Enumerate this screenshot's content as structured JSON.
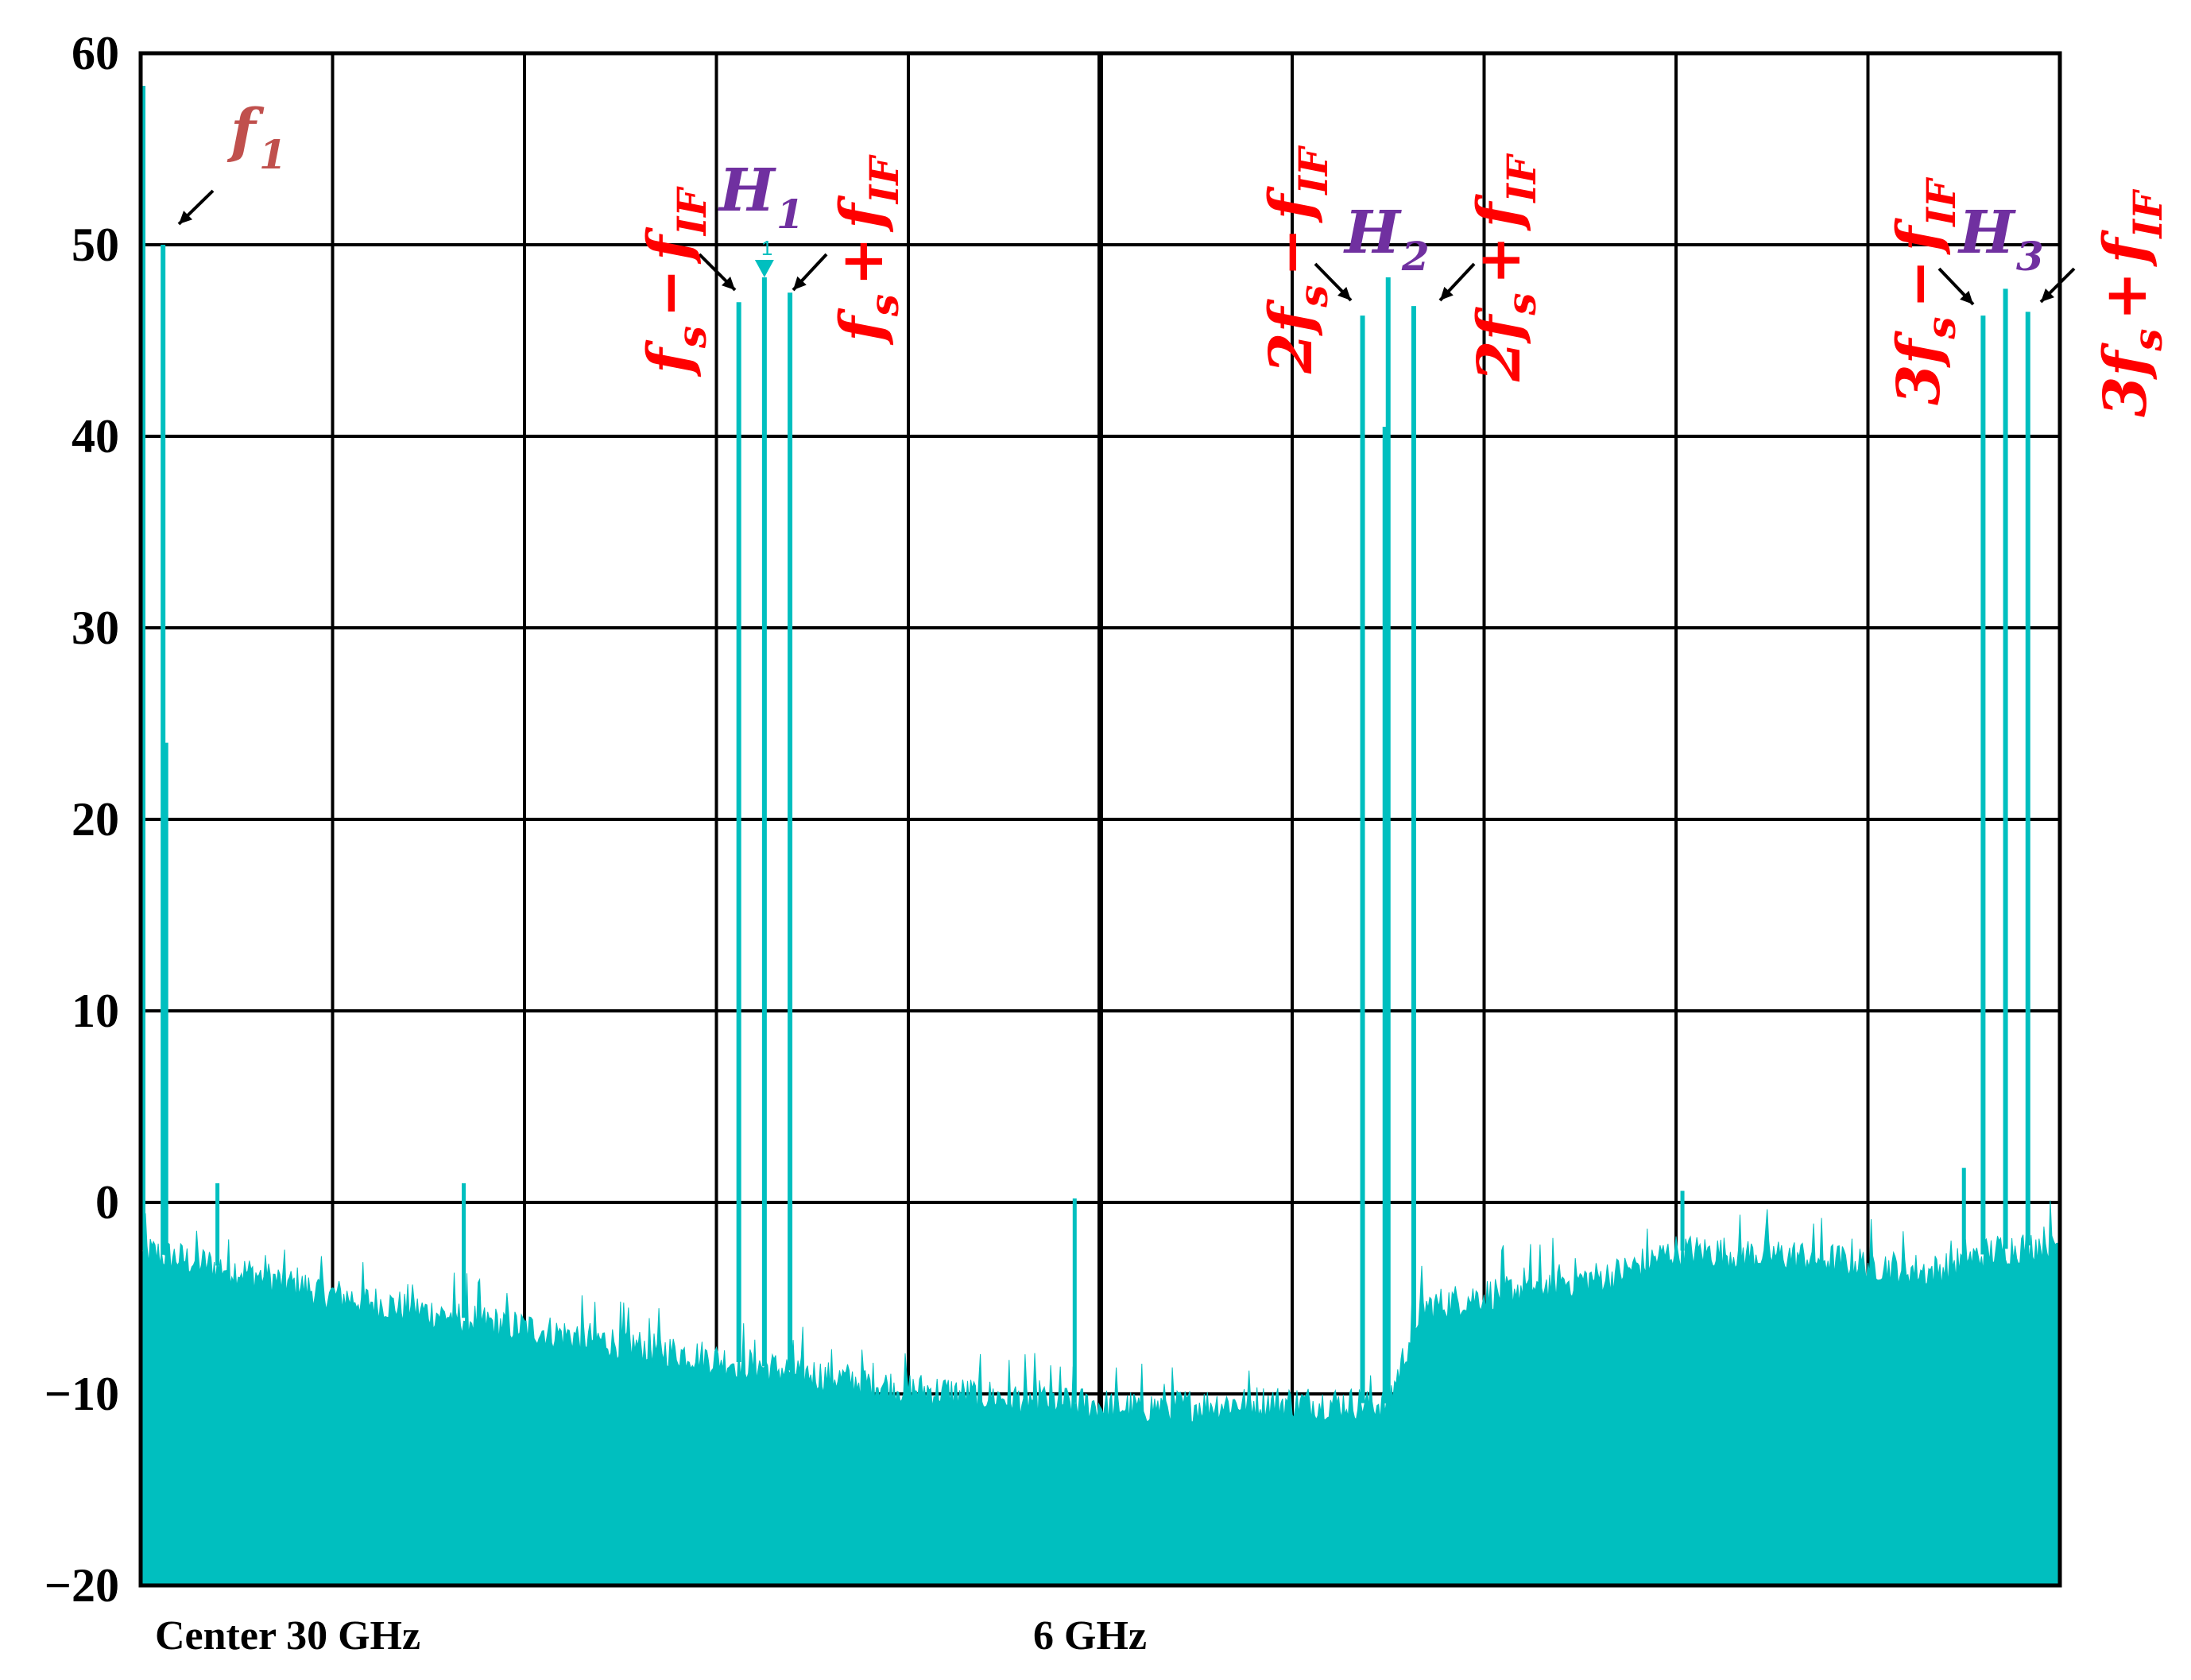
{
  "chart_data": {
    "type": "bar",
    "title": "",
    "xlabel": "",
    "ylabel": "",
    "ylim": [
      -20,
      60
    ],
    "yticks": [
      60,
      50,
      40,
      30,
      20,
      10,
      0,
      -10,
      -20
    ],
    "ytick_labels": [
      "60",
      "50",
      "40",
      "30",
      "20",
      "10",
      "0",
      "−10",
      "−20"
    ],
    "grid": true,
    "center_label": "Center 30 GHz",
    "span_label": "6 GHz",
    "x_range_ghz": [
      27,
      33
    ],
    "trace_color": "#00bfbf",
    "noise_floor": {
      "x_ghz": [
        27.0,
        27.3,
        27.6,
        28.0,
        28.6,
        29.0,
        29.4,
        29.8,
        30.1,
        30.5,
        30.9,
        31.0,
        31.3,
        31.6,
        31.8,
        32.2,
        32.6,
        32.8,
        33.0
      ],
      "level_db": [
        -2.5,
        -3.5,
        -4.8,
        -6.0,
        -7.6,
        -8.7,
        -9.7,
        -10.3,
        -10.7,
        -10.4,
        -10.5,
        -5.5,
        -4.5,
        -3.8,
        -2.5,
        -2.8,
        -3.6,
        -2.5,
        -2.0
      ]
    },
    "spurs": [
      {
        "x_ghz": 27.08,
        "level_db": 24
      },
      {
        "x_ghz": 27.24,
        "level_db": 1.0
      },
      {
        "x_ghz": 28.01,
        "level_db": 1.0
      },
      {
        "x_ghz": 29.92,
        "level_db": 0.2
      },
      {
        "x_ghz": 31.82,
        "level_db": 0.6
      },
      {
        "x_ghz": 32.7,
        "level_db": 1.8
      }
    ],
    "peaks": [
      {
        "label": "f1",
        "x_ghz": 27.07,
        "level_db": 50.0
      },
      {
        "label": "fs - fIF",
        "x_ghz": 28.87,
        "level_db": 47.0
      },
      {
        "label": "H1",
        "x_ghz": 28.95,
        "level_db": 48.3
      },
      {
        "label": "fs + fIF",
        "x_ghz": 29.03,
        "level_db": 47.5
      },
      {
        "label": "2fs - fIF",
        "x_ghz": 30.82,
        "level_db": 46.3
      },
      {
        "label": "H2",
        "x_ghz": 30.9,
        "level_db": 48.3
      },
      {
        "label": "H2 side",
        "x_ghz": 30.89,
        "level_db": 40.5
      },
      {
        "label": "2fs + fIF",
        "x_ghz": 30.98,
        "level_db": 46.8
      },
      {
        "label": "3fs - fIF",
        "x_ghz": 32.76,
        "level_db": 46.3
      },
      {
        "label": "H3",
        "x_ghz": 32.83,
        "level_db": 47.7
      },
      {
        "label": "3fs + fIF",
        "x_ghz": 32.9,
        "level_db": 46.5
      }
    ],
    "edge_peak": {
      "x_ghz": 27.0,
      "level_db": 58.3
    },
    "marker": {
      "number": "1",
      "x_ghz": 28.95,
      "level_db": 48.3
    },
    "annotations": {
      "f1": {
        "main": "f",
        "sub": "1",
        "color": "#c0504d"
      },
      "H1": {
        "main": "H",
        "sub": "1",
        "color": "#7030a0"
      },
      "H2": {
        "main": "H",
        "sub": "2",
        "color": "#7030a0"
      },
      "H3": {
        "main": "H",
        "sub": "3",
        "color": "#7030a0"
      },
      "fs_minus_fIF": {
        "text": "f",
        "s": "s",
        "op": "−",
        "f": "f",
        "if": "IF",
        "color": "#ff0000"
      },
      "fs_plus_fIF": {
        "text": "f",
        "s": "s",
        "op": "+",
        "f": "f",
        "if": "IF",
        "color": "#ff0000"
      },
      "two_fs_minus_fIF": {
        "coef": "2",
        "text": "f",
        "s": "s",
        "op": "−",
        "f": "f",
        "if": "IF",
        "color": "#ff0000"
      },
      "two_fs_plus_fIF": {
        "coef": "2",
        "text": "f",
        "s": "s",
        "op": "+",
        "f": "f",
        "if": "IF",
        "color": "#ff0000"
      },
      "three_fs_minus_fIF": {
        "coef": "3",
        "text": "f",
        "s": "s",
        "op": "−",
        "f": "f",
        "if": "IF",
        "color": "#ff0000"
      },
      "three_fs_plus_fIF": {
        "coef": "3",
        "text": "f",
        "s": "s",
        "op": "+",
        "f": "f",
        "if": "IF",
        "color": "#ff0000"
      }
    }
  }
}
